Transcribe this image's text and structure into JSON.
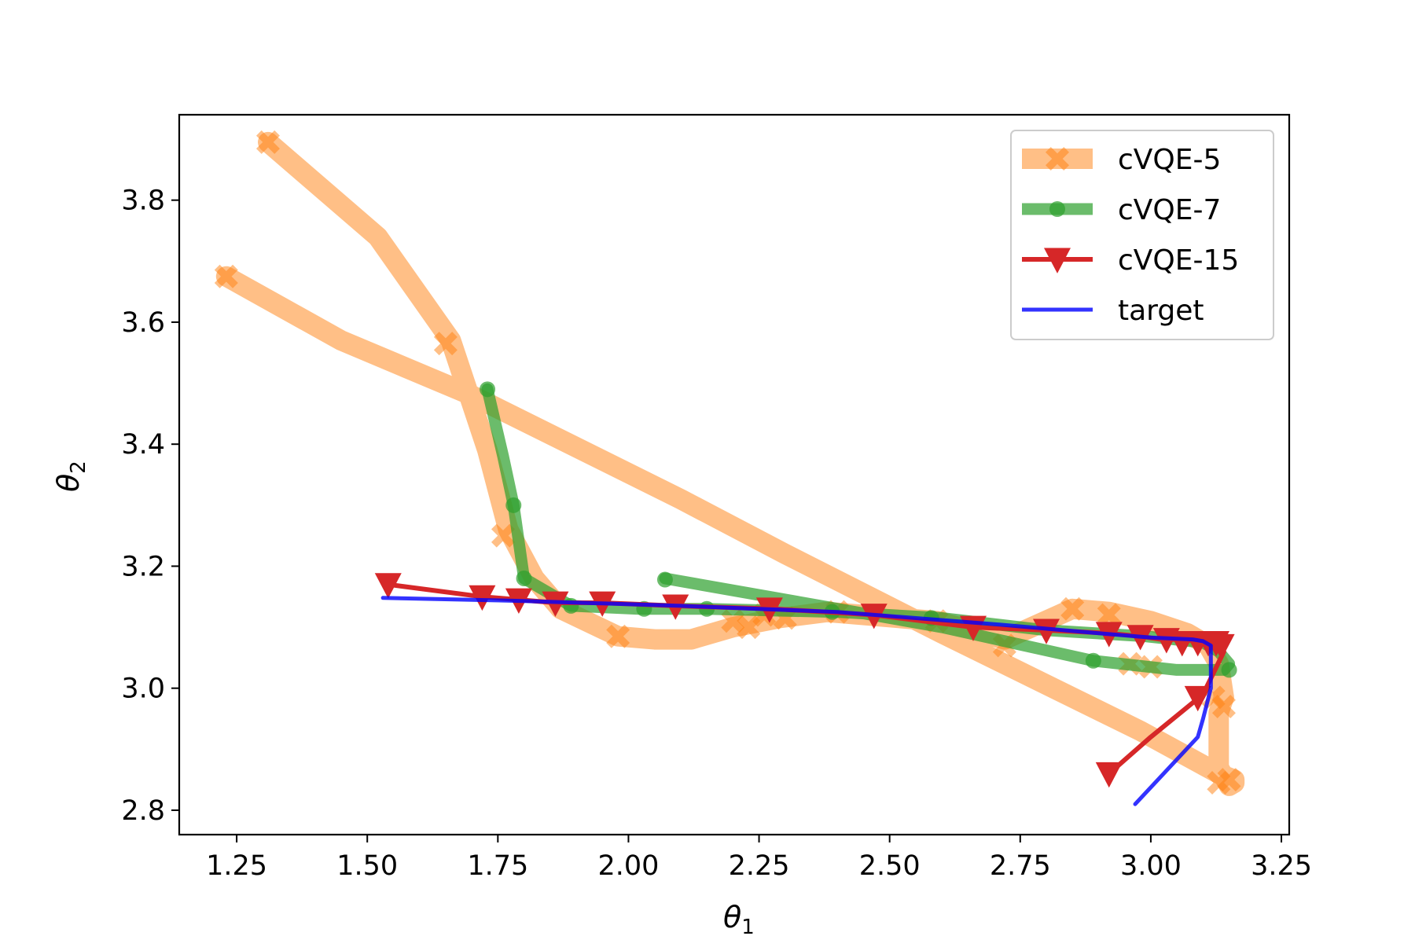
{
  "chart_data": {
    "type": "line",
    "xlabel": "θ1",
    "ylabel": "θ2",
    "xlim": [
      1.14,
      3.265
    ],
    "ylim": [
      2.76,
      3.94
    ],
    "x_ticks": [
      1.25,
      1.5,
      1.75,
      2.0,
      2.25,
      2.5,
      2.75,
      3.0,
      3.25
    ],
    "x_tick_labels": [
      "1.25",
      "1.50",
      "1.75",
      "2.00",
      "2.25",
      "2.50",
      "2.75",
      "3.00",
      "3.25"
    ],
    "y_ticks": [
      2.8,
      3.0,
      3.2,
      3.4,
      3.6,
      3.8
    ],
    "y_tick_labels": [
      "2.8",
      "3.0",
      "3.2",
      "3.4",
      "3.6",
      "3.8"
    ],
    "grid": false,
    "legend_position": "top-right",
    "series": [
      {
        "name": "cVQE-5",
        "color": "#ff7f0e",
        "opacity": 0.5,
        "marker": "x-mark",
        "points": [
          [
            1.31,
            3.895
          ],
          [
            1.52,
            3.74
          ],
          [
            1.66,
            3.57
          ],
          [
            1.73,
            3.39
          ],
          [
            1.77,
            3.26
          ],
          [
            1.82,
            3.18
          ],
          [
            1.87,
            3.13
          ],
          [
            1.98,
            3.085
          ],
          [
            2.05,
            3.08
          ],
          [
            2.12,
            3.08
          ],
          [
            2.2,
            3.1
          ],
          [
            2.29,
            3.115
          ],
          [
            2.38,
            3.125
          ],
          [
            2.59,
            3.11
          ],
          [
            2.72,
            3.08
          ],
          [
            2.85,
            3.13
          ],
          [
            2.92,
            3.125
          ],
          [
            3.0,
            3.11
          ],
          [
            3.07,
            3.09
          ],
          [
            3.11,
            3.07
          ],
          [
            3.13,
            3.04
          ],
          [
            3.14,
            2.985
          ],
          [
            3.13,
            2.96
          ],
          [
            3.13,
            2.87
          ],
          [
            3.15,
            2.84
          ],
          [
            3.16,
            2.845
          ],
          [
            3.16,
            2.85
          ],
          [
            3.13,
            2.86
          ],
          [
            2.98,
            2.93
          ],
          [
            2.6,
            3.09
          ],
          [
            2.3,
            3.22
          ],
          [
            2.1,
            3.31
          ],
          [
            1.7,
            3.48
          ],
          [
            1.45,
            3.57
          ],
          [
            1.23,
            3.675
          ]
        ],
        "markers": [
          [
            1.31,
            3.895
          ],
          [
            1.65,
            3.565
          ],
          [
            1.76,
            3.25
          ],
          [
            1.98,
            3.085
          ],
          [
            2.2,
            3.11
          ],
          [
            2.23,
            3.1
          ],
          [
            2.26,
            3.12
          ],
          [
            2.3,
            3.115
          ],
          [
            2.4,
            3.125
          ],
          [
            2.59,
            3.11
          ],
          [
            2.72,
            3.07
          ],
          [
            2.85,
            3.13
          ],
          [
            2.92,
            3.12
          ],
          [
            2.96,
            3.04
          ],
          [
            3.0,
            3.035
          ],
          [
            3.12,
            2.985
          ],
          [
            3.14,
            2.97
          ],
          [
            3.15,
            2.85
          ],
          [
            3.13,
            2.845
          ],
          [
            1.23,
            3.675
          ]
        ]
      },
      {
        "name": "cVQE-7",
        "color": "#2ca02c",
        "opacity": 0.7,
        "marker": "circle",
        "points": [
          [
            1.73,
            3.49
          ],
          [
            1.76,
            3.38
          ],
          [
            1.78,
            3.3
          ],
          [
            1.8,
            3.18
          ],
          [
            1.89,
            3.135
          ],
          [
            2.02,
            3.13
          ],
          [
            2.15,
            3.13
          ],
          [
            2.4,
            3.125
          ],
          [
            2.6,
            3.115
          ],
          [
            2.8,
            3.095
          ],
          [
            2.99,
            3.085
          ],
          [
            3.1,
            3.075
          ],
          [
            3.13,
            3.06
          ],
          [
            3.15,
            3.04
          ],
          [
            3.14,
            3.03
          ],
          [
            3.05,
            3.03
          ],
          [
            2.89,
            3.045
          ],
          [
            2.6,
            3.1
          ],
          [
            2.07,
            3.18
          ]
        ],
        "markers": [
          [
            1.73,
            3.49
          ],
          [
            1.78,
            3.3
          ],
          [
            1.8,
            3.18
          ],
          [
            1.89,
            3.135
          ],
          [
            2.03,
            3.13
          ],
          [
            2.15,
            3.13
          ],
          [
            2.39,
            3.125
          ],
          [
            2.58,
            3.115
          ],
          [
            2.89,
            3.045
          ],
          [
            3.15,
            3.03
          ],
          [
            2.07,
            3.178
          ]
        ]
      },
      {
        "name": "cVQE-15",
        "color": "#d62728",
        "opacity": 1.0,
        "marker": "triangle-down",
        "points": [
          [
            1.54,
            3.17
          ],
          [
            1.72,
            3.15
          ],
          [
            1.79,
            3.145
          ],
          [
            1.86,
            3.14
          ],
          [
            1.95,
            3.14
          ],
          [
            2.09,
            3.135
          ],
          [
            2.28,
            3.13
          ],
          [
            2.47,
            3.12
          ],
          [
            2.66,
            3.1
          ],
          [
            2.8,
            3.095
          ],
          [
            2.92,
            3.09
          ],
          [
            2.98,
            3.085
          ],
          [
            3.02,
            3.08
          ],
          [
            3.05,
            3.08
          ],
          [
            3.08,
            3.078
          ],
          [
            3.1,
            3.075
          ],
          [
            3.12,
            3.07
          ],
          [
            3.13,
            3.065
          ],
          [
            3.14,
            3.06
          ],
          [
            3.1,
            2.99
          ],
          [
            3.0,
            2.92
          ],
          [
            2.92,
            2.86
          ]
        ],
        "markers": [
          [
            1.54,
            3.17
          ],
          [
            1.72,
            3.15
          ],
          [
            1.79,
            3.145
          ],
          [
            1.86,
            3.14
          ],
          [
            1.95,
            3.14
          ],
          [
            2.09,
            3.135
          ],
          [
            2.27,
            3.13
          ],
          [
            2.47,
            3.12
          ],
          [
            2.66,
            3.1
          ],
          [
            2.8,
            3.095
          ],
          [
            2.92,
            3.09
          ],
          [
            2.98,
            3.085
          ],
          [
            3.03,
            3.08
          ],
          [
            3.06,
            3.075
          ],
          [
            3.09,
            3.075
          ],
          [
            3.11,
            3.075
          ],
          [
            3.125,
            3.075
          ],
          [
            3.135,
            3.07
          ],
          [
            3.09,
            2.985
          ],
          [
            2.92,
            2.86
          ]
        ]
      },
      {
        "name": "target",
        "color": "#0000ff",
        "opacity": 0.8,
        "marker": "none",
        "points": [
          [
            1.53,
            3.148
          ],
          [
            1.8,
            3.143
          ],
          [
            2.1,
            3.135
          ],
          [
            2.4,
            3.125
          ],
          [
            2.7,
            3.105
          ],
          [
            2.9,
            3.09
          ],
          [
            3.0,
            3.083
          ],
          [
            3.08,
            3.08
          ],
          [
            3.1,
            3.077
          ],
          [
            3.115,
            3.07
          ],
          [
            3.115,
            3.0
          ],
          [
            3.1,
            2.95
          ],
          [
            3.09,
            2.92
          ],
          [
            2.97,
            2.81
          ]
        ],
        "markers": []
      }
    ]
  }
}
